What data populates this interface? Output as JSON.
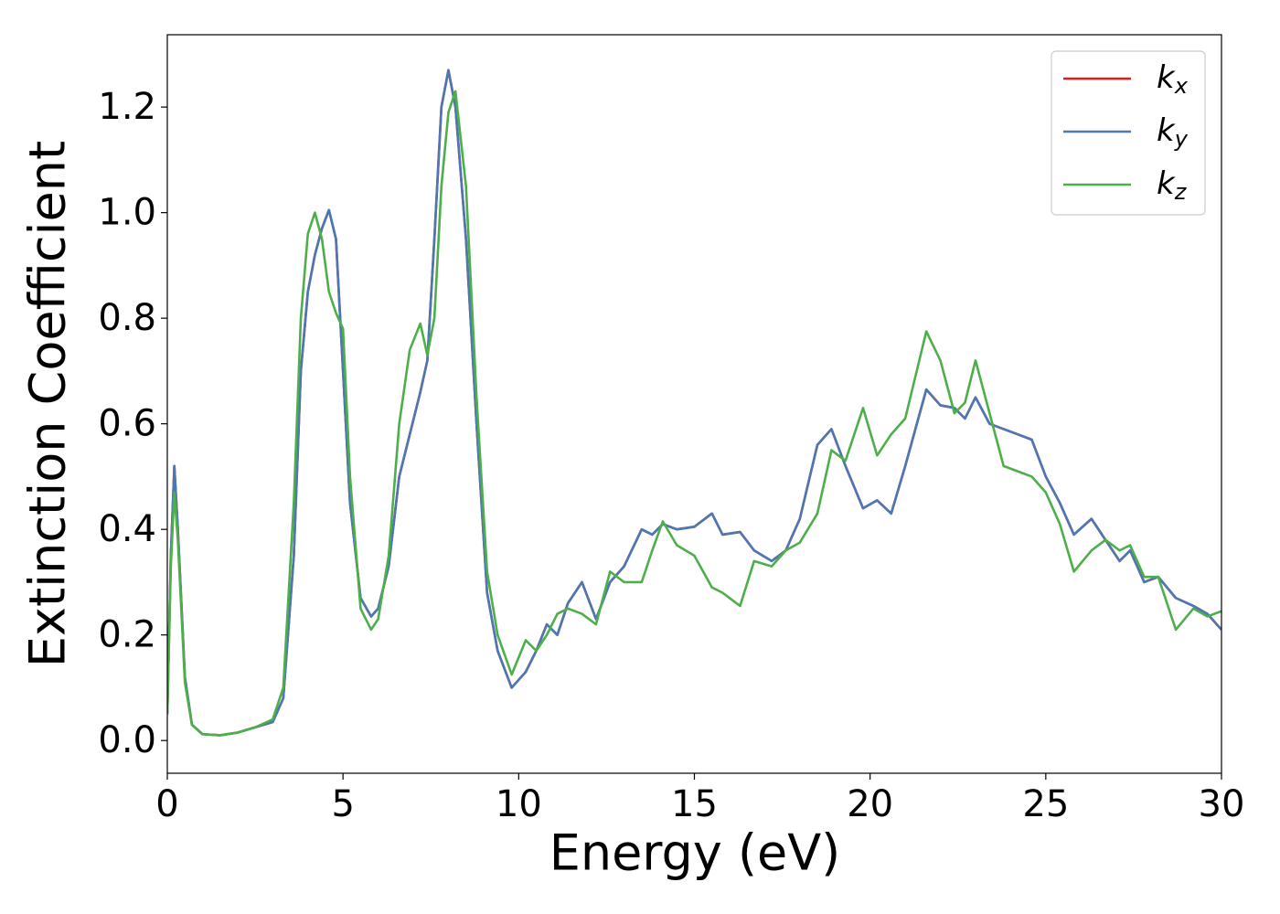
{
  "chart_data": {
    "type": "line",
    "xlabel": "Energy (eV)",
    "ylabel": "Extinction Coefficient",
    "x": [
      0,
      0.1,
      0.2,
      0.3,
      0.5,
      0.7,
      1,
      1.5,
      2,
      2.5,
      3,
      3.3,
      3.6,
      3.8,
      4,
      4.2,
      4.4,
      4.6,
      4.8,
      5,
      5.2,
      5.5,
      5.8,
      6,
      6.3,
      6.6,
      6.9,
      7.2,
      7.4,
      7.6,
      7.8,
      8,
      8.2,
      8.5,
      8.8,
      9.1,
      9.4,
      9.8,
      10.2,
      10.5,
      10.8,
      11.1,
      11.4,
      11.8,
      12.2,
      12.6,
      13,
      13.5,
      13.8,
      14.1,
      14.5,
      15,
      15.5,
      15.8,
      16.3,
      16.7,
      17.2,
      17.6,
      18,
      18.5,
      18.9,
      19.3,
      19.8,
      20.2,
      20.6,
      21,
      21.6,
      22,
      22.4,
      22.7,
      23,
      23.4,
      23.8,
      24.2,
      24.6,
      25,
      25.4,
      25.8,
      26.3,
      26.7,
      27.1,
      27.4,
      27.8,
      28.2,
      28.7,
      29.2,
      29.6,
      30
    ],
    "series": [
      {
        "name": "kx",
        "color": "#e41a1c",
        "values": [
          0.05,
          0.35,
          0.52,
          0.4,
          0.12,
          0.03,
          0.012,
          0.01,
          0.015,
          0.025,
          0.035,
          0.08,
          0.35,
          0.7,
          0.85,
          0.92,
          0.97,
          1.005,
          0.95,
          0.7,
          0.45,
          0.27,
          0.235,
          0.25,
          0.33,
          0.5,
          0.58,
          0.66,
          0.72,
          0.95,
          1.2,
          1.27,
          1.2,
          0.95,
          0.6,
          0.28,
          0.17,
          0.1,
          0.13,
          0.17,
          0.22,
          0.2,
          0.26,
          0.3,
          0.23,
          0.3,
          0.33,
          0.4,
          0.39,
          0.41,
          0.4,
          0.405,
          0.43,
          0.39,
          0.395,
          0.36,
          0.34,
          0.36,
          0.42,
          0.56,
          0.59,
          0.52,
          0.44,
          0.455,
          0.43,
          0.52,
          0.665,
          0.635,
          0.63,
          0.61,
          0.65,
          0.6,
          0.59,
          0.58,
          0.57,
          0.5,
          0.45,
          0.39,
          0.42,
          0.38,
          0.34,
          0.36,
          0.3,
          0.31,
          0.27,
          0.255,
          0.24,
          0.21
        ]
      },
      {
        "name": "ky",
        "color": "#4a78b5",
        "values": [
          0.05,
          0.35,
          0.52,
          0.4,
          0.12,
          0.03,
          0.012,
          0.01,
          0.015,
          0.025,
          0.035,
          0.08,
          0.35,
          0.7,
          0.85,
          0.92,
          0.97,
          1.005,
          0.95,
          0.7,
          0.45,
          0.27,
          0.235,
          0.25,
          0.33,
          0.5,
          0.58,
          0.66,
          0.72,
          0.95,
          1.2,
          1.27,
          1.2,
          0.95,
          0.6,
          0.28,
          0.17,
          0.1,
          0.13,
          0.17,
          0.22,
          0.2,
          0.26,
          0.3,
          0.23,
          0.3,
          0.33,
          0.4,
          0.39,
          0.41,
          0.4,
          0.405,
          0.43,
          0.39,
          0.395,
          0.36,
          0.34,
          0.36,
          0.42,
          0.56,
          0.59,
          0.52,
          0.44,
          0.455,
          0.43,
          0.52,
          0.665,
          0.635,
          0.63,
          0.61,
          0.65,
          0.6,
          0.59,
          0.58,
          0.57,
          0.5,
          0.45,
          0.39,
          0.42,
          0.38,
          0.34,
          0.36,
          0.3,
          0.31,
          0.27,
          0.255,
          0.24,
          0.21
        ]
      },
      {
        "name": "kz",
        "color": "#4daf4a",
        "values": [
          0.05,
          0.33,
          0.47,
          0.38,
          0.11,
          0.03,
          0.012,
          0.01,
          0.015,
          0.025,
          0.04,
          0.1,
          0.45,
          0.8,
          0.96,
          1.0,
          0.95,
          0.85,
          0.81,
          0.78,
          0.5,
          0.25,
          0.21,
          0.23,
          0.35,
          0.6,
          0.74,
          0.79,
          0.73,
          0.8,
          1.05,
          1.19,
          1.23,
          1.05,
          0.65,
          0.32,
          0.2,
          0.125,
          0.19,
          0.17,
          0.2,
          0.24,
          0.25,
          0.24,
          0.22,
          0.32,
          0.3,
          0.3,
          0.36,
          0.415,
          0.37,
          0.35,
          0.29,
          0.28,
          0.255,
          0.34,
          0.33,
          0.36,
          0.375,
          0.43,
          0.55,
          0.53,
          0.63,
          0.54,
          0.58,
          0.61,
          0.775,
          0.72,
          0.62,
          0.64,
          0.72,
          0.62,
          0.52,
          0.51,
          0.5,
          0.47,
          0.41,
          0.32,
          0.36,
          0.38,
          0.36,
          0.37,
          0.31,
          0.31,
          0.21,
          0.25,
          0.235,
          0.245
        ]
      }
    ],
    "xlim": [
      0,
      30
    ],
    "xticks": [
      0,
      5,
      10,
      15,
      20,
      25,
      30
    ],
    "ylim": [
      -0.062,
      1.337
    ],
    "yticks": [
      {
        "value": 0,
        "label": "0.0"
      },
      0.2,
      0.4,
      0.6,
      0.8,
      {
        "value": 1,
        "label": "1.0"
      },
      1.2
    ],
    "grid": false,
    "legend": "upper right"
  }
}
